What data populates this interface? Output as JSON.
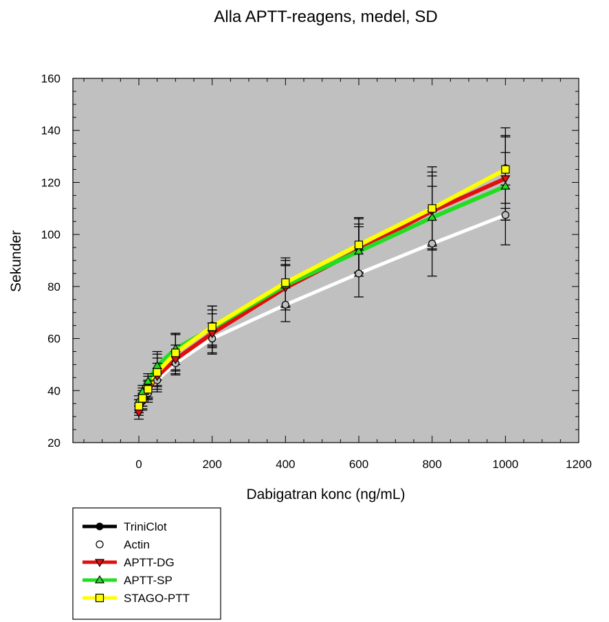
{
  "chart_data": {
    "type": "line",
    "title": "Alla APTT-reagens, medel, SD",
    "xlabel": "Dabigatran konc (ng/mL)",
    "ylabel": "Sekunder",
    "xlim": [
      -180,
      1200
    ],
    "ylim": [
      20,
      160
    ],
    "xticks": [
      0,
      200,
      400,
      600,
      800,
      1000,
      1200
    ],
    "yticks": [
      20,
      40,
      60,
      80,
      100,
      120,
      140,
      160
    ],
    "x": [
      0,
      10,
      25,
      50,
      100,
      200,
      400,
      600,
      800,
      1000
    ],
    "plot_background": "#c0c0c0",
    "grid": false,
    "legend_position": "bottom-left",
    "series": [
      {
        "name": "TriniClot",
        "color": "#000000",
        "marker": "filled-circle",
        "marker_fill": "#000000",
        "line": true,
        "values": [
          33.5,
          37.5,
          41.5,
          48,
          55,
          65,
          81,
          95.5,
          110,
          125.5
        ],
        "sd": [
          3,
          3.5,
          4,
          6,
          7,
          7.5,
          9,
          10.5,
          14,
          15.5
        ]
      },
      {
        "name": "Actin",
        "color": "#ffffff",
        "marker": "open-circle",
        "marker_fill": "#c0c0c0",
        "line": false,
        "values": [
          34,
          36,
          39,
          44,
          50.5,
          60,
          73,
          85,
          96.5,
          107.5
        ],
        "sd": [
          2.5,
          3,
          3.5,
          4.5,
          4.5,
          6,
          6.5,
          9,
          12.5,
          11.5
        ]
      },
      {
        "name": "APTT-DG",
        "color": "#e01010",
        "marker": "down-triangle",
        "marker_fill": "#e01010",
        "line": true,
        "values": [
          31.5,
          35.5,
          40,
          45.5,
          52,
          62,
          79.5,
          94,
          109,
          121.5
        ],
        "sd": [
          2.5,
          3,
          3.5,
          5,
          5.5,
          7.5,
          8.5,
          10,
          13.5,
          16
        ]
      },
      {
        "name": "APTT-SP",
        "color": "#22dd22",
        "marker": "up-triangle",
        "marker_fill": "#22dd22",
        "line": true,
        "values": [
          36,
          39.5,
          43.5,
          49.5,
          56,
          64,
          80.5,
          93.5,
          106.5,
          118.5
        ],
        "sd": [
          2,
          2.5,
          3,
          5.5,
          6,
          7,
          8,
          9.5,
          12,
          13
        ]
      },
      {
        "name": "STAGO-PTT",
        "color": "#ffff00",
        "marker": "square",
        "marker_fill": "#ffff00",
        "line": true,
        "values": [
          34,
          37,
          40.5,
          47,
          54.5,
          64.5,
          81.5,
          96,
          110,
          125
        ],
        "sd": [
          2.5,
          3,
          3.5,
          5.5,
          7,
          8,
          9.5,
          10.5,
          16,
          13
        ]
      }
    ]
  }
}
